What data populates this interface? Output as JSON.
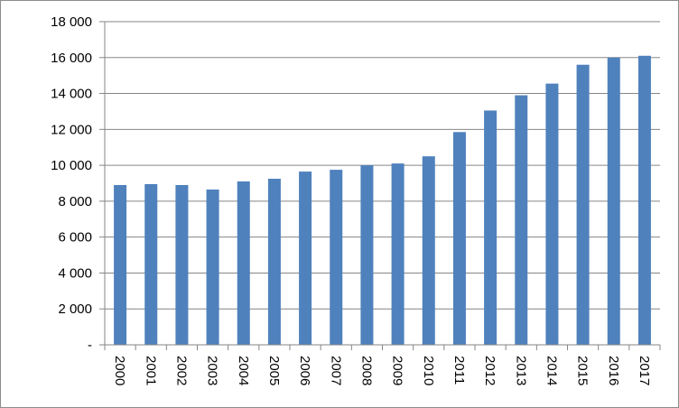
{
  "chart_data": {
    "type": "bar",
    "title": "",
    "xlabel": "",
    "ylabel": "",
    "categories": [
      "2000",
      "2001",
      "2002",
      "2003",
      "2004",
      "2005",
      "2006",
      "2007",
      "2008",
      "2009",
      "2010",
      "2011",
      "2012",
      "2013",
      "2014",
      "2015",
      "2016",
      "2017"
    ],
    "series": [
      {
        "values": [
          8900,
          8950,
          8900,
          8650,
          9100,
          9250,
          9650,
          9750,
          10000,
          10100,
          10500,
          11850,
          13050,
          13900,
          14550,
          15600,
          16000,
          16100
        ],
        "color": "#4f81bd"
      }
    ],
    "ylim": [
      0,
      18000
    ],
    "yticks": [
      0,
      2000,
      4000,
      6000,
      8000,
      10000,
      12000,
      14000,
      16000,
      18000
    ],
    "ytick_labels": [
      "-",
      "2 000",
      "4 000",
      "6 000",
      "8 000",
      "10 000",
      "12 000",
      "14 000",
      "16 000",
      "18 000"
    ],
    "grid": true,
    "legend": "none",
    "x_tick_rotation": "vertical"
  }
}
